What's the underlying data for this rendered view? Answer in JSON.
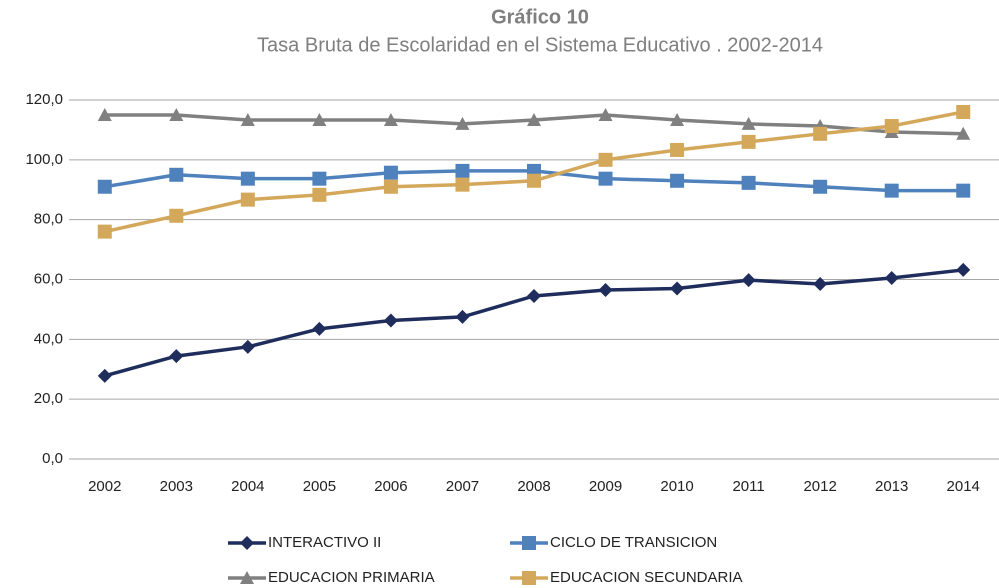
{
  "chart_data": {
    "type": "line",
    "title": "Gráfico 10",
    "subtitle": "Tasa Bruta de Escolaridad en el Sistema Educativo . 2002-2014",
    "categories": [
      "2002",
      "2003",
      "2004",
      "2005",
      "2006",
      "2007",
      "2008",
      "2009",
      "2010",
      "2011",
      "2012",
      "2013",
      "2014"
    ],
    "series": [
      {
        "name": "INTERACTIVO II",
        "color": "#1f2d5c",
        "marker": "diamond",
        "values": [
          27.8,
          34.4,
          37.5,
          43.5,
          46.3,
          47.5,
          54.5,
          56.5,
          57,
          59.8,
          58.5,
          60.5,
          63.2
        ]
      },
      {
        "name": "CICLO DE TRANSICION",
        "color": "#4f81bd",
        "marker": "square",
        "values": [
          91,
          95,
          93.7,
          93.7,
          95.7,
          96.3,
          96.3,
          93.7,
          93,
          92.3,
          91,
          89.7,
          89.7
        ]
      },
      {
        "name": "EDUCACION PRIMARIA",
        "color": "#808080",
        "marker": "triangle",
        "values": [
          115,
          115,
          113.3,
          113.3,
          113.3,
          112,
          113.3,
          115,
          113.3,
          112,
          111.3,
          109.3,
          108.7
        ]
      },
      {
        "name": "EDUCACION SECUNDARIA",
        "color": "#d4a85a",
        "marker": "square",
        "values": [
          76,
          81.3,
          86.7,
          88.3,
          91,
          91.7,
          93,
          100,
          103.3,
          106,
          108.7,
          111.3,
          116
        ]
      }
    ],
    "ylim": [
      0,
      120
    ],
    "yticks": [
      {
        "value": 0,
        "label": "0,0"
      },
      {
        "value": 20,
        "label": "20,0"
      },
      {
        "value": 40,
        "label": "40,0"
      },
      {
        "value": 60,
        "label": "60,0"
      },
      {
        "value": 80,
        "label": "80,0"
      },
      {
        "value": 100,
        "label": "100,0"
      },
      {
        "value": 120,
        "label": "120,0"
      }
    ],
    "grid": true,
    "legend": "bottom"
  }
}
